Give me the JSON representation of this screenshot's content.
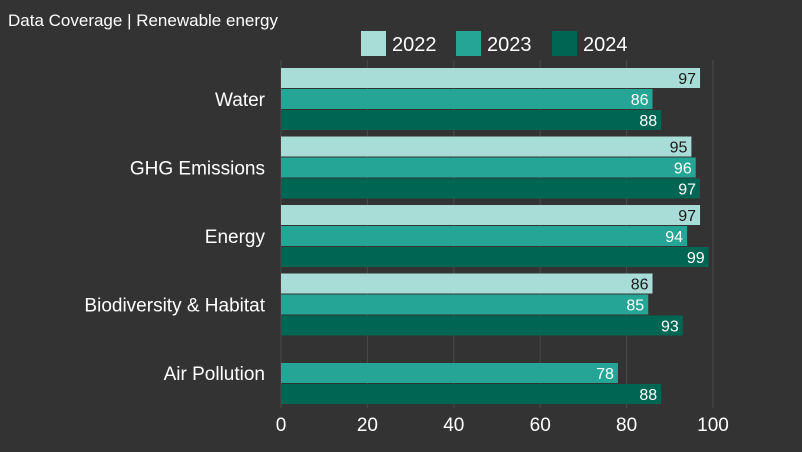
{
  "title": "Data Coverage | Renewable energy",
  "colors": {
    "background": "#333333",
    "gridline": "#4a4a4a",
    "series": [
      "#a8dcd7",
      "#25a595",
      "#006654"
    ]
  },
  "chart_data": {
    "type": "bar",
    "orientation": "horizontal",
    "title": "Data Coverage | Renewable energy",
    "categories": [
      "Water",
      "GHG Emissions",
      "Energy",
      "Biodiversity & Habitat",
      "Air Pollution"
    ],
    "series": [
      {
        "name": "2022",
        "values": [
          97,
          95,
          97,
          86,
          null
        ]
      },
      {
        "name": "2023",
        "values": [
          86,
          96,
          94,
          85,
          78
        ]
      },
      {
        "name": "2024",
        "values": [
          88,
          97,
          99,
          93,
          88
        ]
      }
    ],
    "xlim": [
      0,
      100
    ],
    "xticks": [
      "0",
      "20",
      "40",
      "60",
      "80",
      "100"
    ],
    "xlabel": "",
    "ylabel": "",
    "grid": true,
    "legend_position": "top"
  }
}
